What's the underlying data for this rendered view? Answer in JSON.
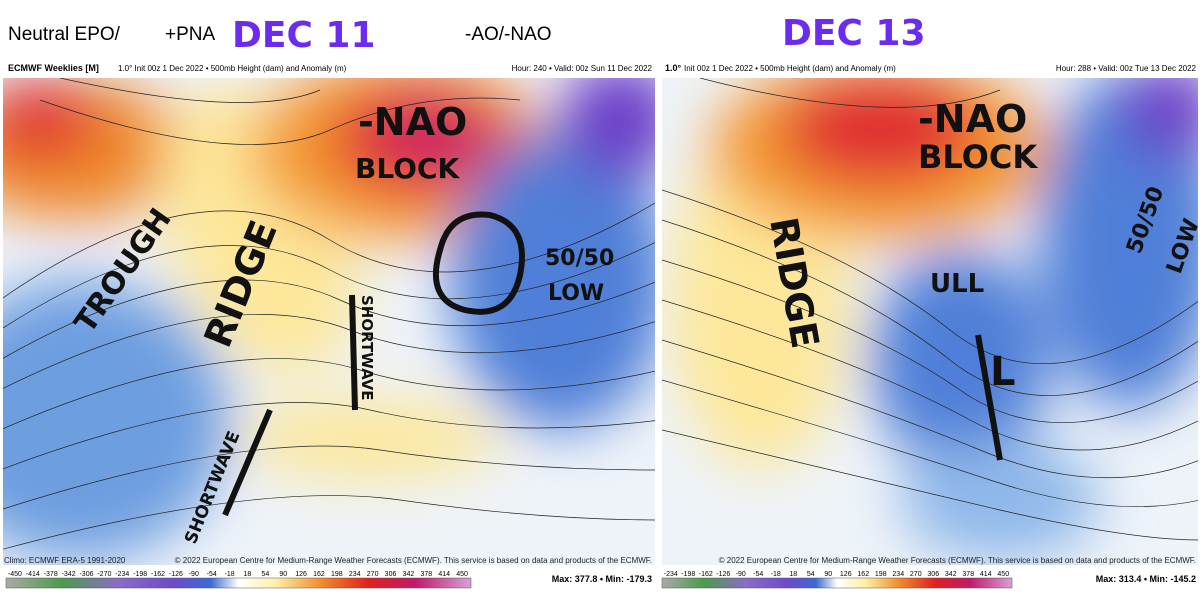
{
  "header": {
    "left_label_1": "Neutral EPO/",
    "left_label_2": "+PNA",
    "left_date": "DEC 11",
    "middle_label": "-AO/-NAO",
    "right_date": "DEC 13"
  },
  "panels": [
    {
      "model": "ECMWF Weeklies [M]",
      "info": "1.0° Init 00z 1 Dec 2022 • 500mb Height (dam) and Anomaly (m)",
      "valid": "Hour: 240 • Valid: 00z Sun 11 Dec 2022",
      "annotations": {
        "nao": "-NAO",
        "block": "BLOCK",
        "trough": "TROUGH",
        "ridge": "RIDGE",
        "shortwave_1": "SHORTWAVE",
        "shortwave_2": "SHORTWAVE",
        "low_1": "50/50",
        "low_2": "LOW"
      },
      "climo": "Climo: ECMWF ERA-5 1991-2020",
      "copyright": "© 2022 European Centre for Medium-Range Weather Forecasts (ECMWF). This service is based on data and products of the ECMWF.",
      "colorbar": [
        -450,
        -414,
        -378,
        -342,
        -306,
        -270,
        -234,
        -198,
        -162,
        -126,
        -90,
        -54,
        -18,
        18,
        54,
        90,
        126,
        162,
        198,
        234,
        270,
        306,
        342,
        378,
        414,
        450
      ],
      "maxmin": "Max: 377.8 • Min: -179.3"
    },
    {
      "model": "1.0°",
      "info": "Init 00z 1 Dec 2022 • 500mb Height (dam) and Anomaly (m)",
      "valid": "Hour: 288 • Valid: 00z Tue 13 Dec 2022",
      "annotations": {
        "nao": "-NAO",
        "block": "BLOCK",
        "ridge": "RIDGE",
        "ull": "ULL",
        "l": "L",
        "low_1": "50/50",
        "low_2": "LOW"
      },
      "copyright": "© 2022 European Centre for Medium-Range Weather Forecasts (ECMWF). This service is based on data and products of the ECMWF.",
      "colorbar": [
        -234,
        -198,
        -162,
        -126,
        -90,
        -54,
        -18,
        18,
        54,
        90,
        126,
        162,
        198,
        234,
        270,
        306,
        342,
        378,
        414,
        450
      ],
      "maxmin": "Max: 313.4 • Min: -145.2"
    }
  ]
}
